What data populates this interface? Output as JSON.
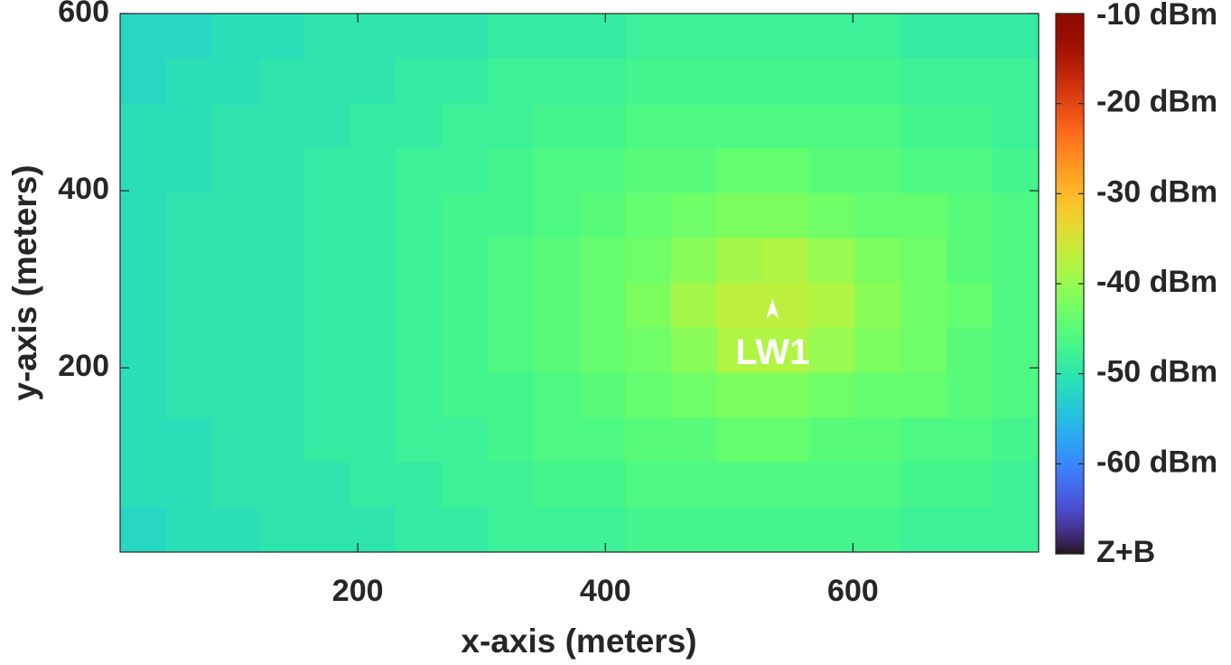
{
  "chart_data": {
    "type": "heatmap",
    "colormap": "turbo",
    "xlabel": "x-axis (meters)",
    "ylabel": "y-axis (meters)",
    "xlim": [
      8,
      750
    ],
    "ylim": [
      -8,
      600
    ],
    "xticks": [
      200,
      400,
      600
    ],
    "yticks": [
      200,
      400,
      600
    ],
    "clim": [
      -70,
      -10
    ],
    "cticks": [
      {
        "value": -10,
        "label": "-10 dBm"
      },
      {
        "value": -20,
        "label": "-20 dBm"
      },
      {
        "value": -30,
        "label": "-30 dBm"
      },
      {
        "value": -40,
        "label": "-40 dBm"
      },
      {
        "value": -50,
        "label": "-50 dBm"
      },
      {
        "value": -60,
        "label": "-60 dBm"
      },
      {
        "value": -70,
        "label": "Z+B"
      }
    ],
    "z": [
      [
        -52,
        -52,
        -51,
        -51,
        -50,
        -50,
        -50,
        -50,
        -49,
        -49,
        -49,
        -48,
        -48,
        -48,
        -48,
        -48,
        -48,
        -49,
        -49,
        -49
      ],
      [
        -52,
        -51,
        -51,
        -50,
        -50,
        -50,
        -49,
        -49,
        -48,
        -48,
        -48,
        -47,
        -47,
        -47,
        -47,
        -47,
        -47,
        -48,
        -48,
        -48
      ],
      [
        -51,
        -51,
        -50,
        -50,
        -50,
        -49,
        -49,
        -48,
        -48,
        -47,
        -47,
        -46,
        -46,
        -46,
        -46,
        -46,
        -46,
        -47,
        -47,
        -48
      ],
      [
        -51,
        -51,
        -50,
        -50,
        -49,
        -49,
        -48,
        -48,
        -47,
        -46,
        -46,
        -45,
        -45,
        -44,
        -44,
        -45,
        -45,
        -46,
        -46,
        -47
      ],
      [
        -51,
        -50,
        -50,
        -50,
        -49,
        -49,
        -48,
        -47,
        -47,
        -46,
        -45,
        -44,
        -43,
        -42,
        -42,
        -43,
        -44,
        -44,
        -45,
        -46
      ],
      [
        -51,
        -50,
        -50,
        -50,
        -49,
        -49,
        -48,
        -47,
        -46,
        -45,
        -44,
        -43,
        -41,
        -39,
        -38,
        -40,
        -42,
        -43,
        -45,
        -46
      ],
      [
        -51,
        -50,
        -50,
        -50,
        -49,
        -49,
        -48,
        -47,
        -46,
        -45,
        -44,
        -42,
        -39,
        -37,
        -37,
        -38,
        -41,
        -43,
        -44,
        -46
      ],
      [
        -51,
        -50,
        -50,
        -50,
        -49,
        -49,
        -48,
        -47,
        -46,
        -45,
        -44,
        -43,
        -41,
        -38,
        -38,
        -40,
        -42,
        -43,
        -45,
        -46
      ],
      [
        -51,
        -50,
        -50,
        -50,
        -49,
        -49,
        -48,
        -47,
        -47,
        -46,
        -45,
        -44,
        -43,
        -42,
        -42,
        -43,
        -44,
        -44,
        -45,
        -46
      ],
      [
        -51,
        -51,
        -50,
        -50,
        -49,
        -49,
        -48,
        -48,
        -47,
        -46,
        -46,
        -45,
        -45,
        -44,
        -44,
        -45,
        -45,
        -46,
        -46,
        -47
      ],
      [
        -51,
        -51,
        -50,
        -50,
        -50,
        -49,
        -49,
        -48,
        -48,
        -47,
        -47,
        -46,
        -46,
        -46,
        -46,
        -46,
        -46,
        -47,
        -47,
        -48
      ],
      [
        -52,
        -51,
        -51,
        -50,
        -50,
        -50,
        -49,
        -49,
        -48,
        -48,
        -48,
        -47,
        -47,
        -47,
        -47,
        -47,
        -47,
        -48,
        -48,
        -48
      ]
    ],
    "annotations": [
      {
        "text": "LW1",
        "x": 535,
        "y": 270
      }
    ]
  }
}
